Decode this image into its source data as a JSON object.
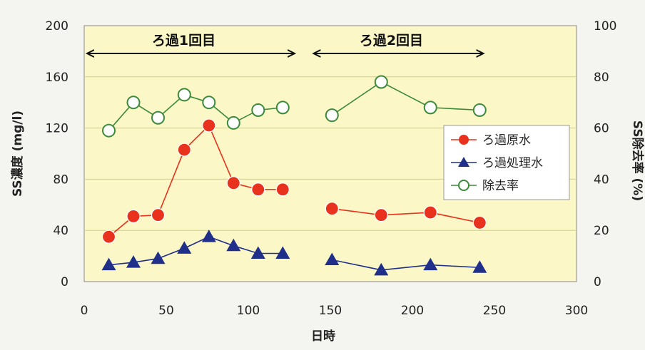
{
  "chart_data": {
    "type": "line",
    "title": "",
    "xlabel": "日時",
    "ylabel": "SS濃度 (mg/l)",
    "y2label": "SS除去率 (%)",
    "xlim": [
      0,
      300
    ],
    "ylim": [
      0,
      200
    ],
    "y2lim": [
      0,
      100
    ],
    "x_ticks": [
      "0",
      "50",
      "100",
      "150",
      "200",
      "250",
      "300"
    ],
    "y_ticks": [
      "0",
      "40",
      "80",
      "120",
      "160",
      "200"
    ],
    "y2_ticks": [
      "0",
      "20",
      "40",
      "60",
      "80",
      "100"
    ],
    "grid": true,
    "legend_position": "right",
    "annotations": [
      {
        "text": "ろ過1回目",
        "x_start": 0,
        "x_end": 130
      },
      {
        "text": "ろ過2回目",
        "x_start": 138,
        "x_end": 245
      }
    ],
    "series": [
      {
        "name": "ろ過原水",
        "axis": "left",
        "color": "#e8321e",
        "marker": "circle-filled",
        "segments": [
          {
            "x": [
              15,
              30,
              45,
              61,
              76,
              91,
              106,
              121
            ],
            "y": [
              35,
              51,
              52,
              103,
              122,
              77,
              72,
              72
            ]
          },
          {
            "x": [
              151,
              181,
              211,
              241
            ],
            "y": [
              57,
              52,
              54,
              46
            ]
          }
        ]
      },
      {
        "name": "ろ過処理水",
        "axis": "left",
        "color": "#1f2f8a",
        "marker": "triangle-filled",
        "segments": [
          {
            "x": [
              15,
              30,
              45,
              61,
              76,
              91,
              106,
              121
            ],
            "y": [
              13,
              15,
              18,
              26,
              35,
              28,
              22,
              22
            ]
          },
          {
            "x": [
              151,
              181,
              211,
              241
            ],
            "y": [
              17,
              9,
              13,
              11
            ]
          }
        ]
      },
      {
        "name": "除去率",
        "axis": "right",
        "color": "#3d8a3a",
        "marker": "circle-open",
        "segments": [
          {
            "x": [
              15,
              30,
              45,
              61,
              76,
              91,
              106,
              121
            ],
            "y": [
              59,
              70,
              64,
              73,
              70,
              62,
              67,
              68
            ]
          },
          {
            "x": [
              151,
              181,
              211,
              241
            ],
            "y": [
              65,
              78,
              68,
              67
            ]
          }
        ]
      }
    ]
  }
}
